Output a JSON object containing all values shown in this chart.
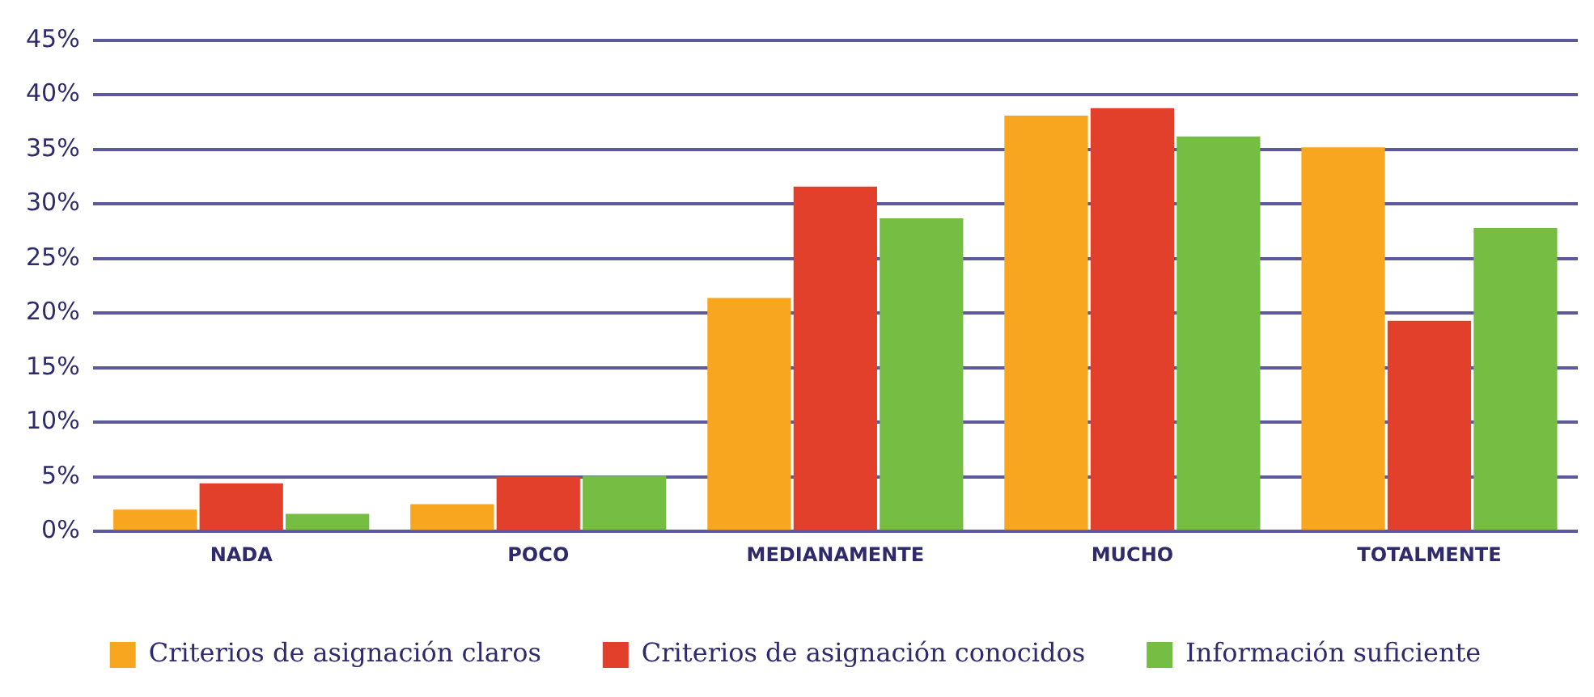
{
  "chart_data": {
    "type": "bar",
    "categories": [
      "NADA",
      "POCO",
      "MEDIANAMENTE",
      "MUCHO",
      "TOTALMENTE"
    ],
    "series": [
      {
        "name": "Criterios de asignación claros",
        "color": "#f8a51f",
        "values": [
          2.0,
          2.5,
          21.4,
          38.1,
          35.2
        ]
      },
      {
        "name": "Criterios de asignación conocidos",
        "color": "#e3402c",
        "values": [
          4.4,
          5.0,
          31.6,
          38.8,
          19.3
        ]
      },
      {
        "name": "Información suficiente",
        "color": "#76bd43",
        "values": [
          1.6,
          5.1,
          28.7,
          36.2,
          27.8
        ]
      }
    ],
    "ylim": [
      0,
      45
    ],
    "yticks": [
      {
        "value": 0,
        "label": "0%"
      },
      {
        "value": 5,
        "label": "5%"
      },
      {
        "value": 10,
        "label": "10%"
      },
      {
        "value": 15,
        "label": "15%"
      },
      {
        "value": 20,
        "label": "20%"
      },
      {
        "value": 25,
        "label": "25%"
      },
      {
        "value": 30,
        "label": "30%"
      },
      {
        "value": 35,
        "label": "35%"
      },
      {
        "value": 40,
        "label": "40%"
      },
      {
        "value": 45,
        "label": "45%"
      }
    ],
    "grid": "y",
    "legend": "bottom"
  }
}
